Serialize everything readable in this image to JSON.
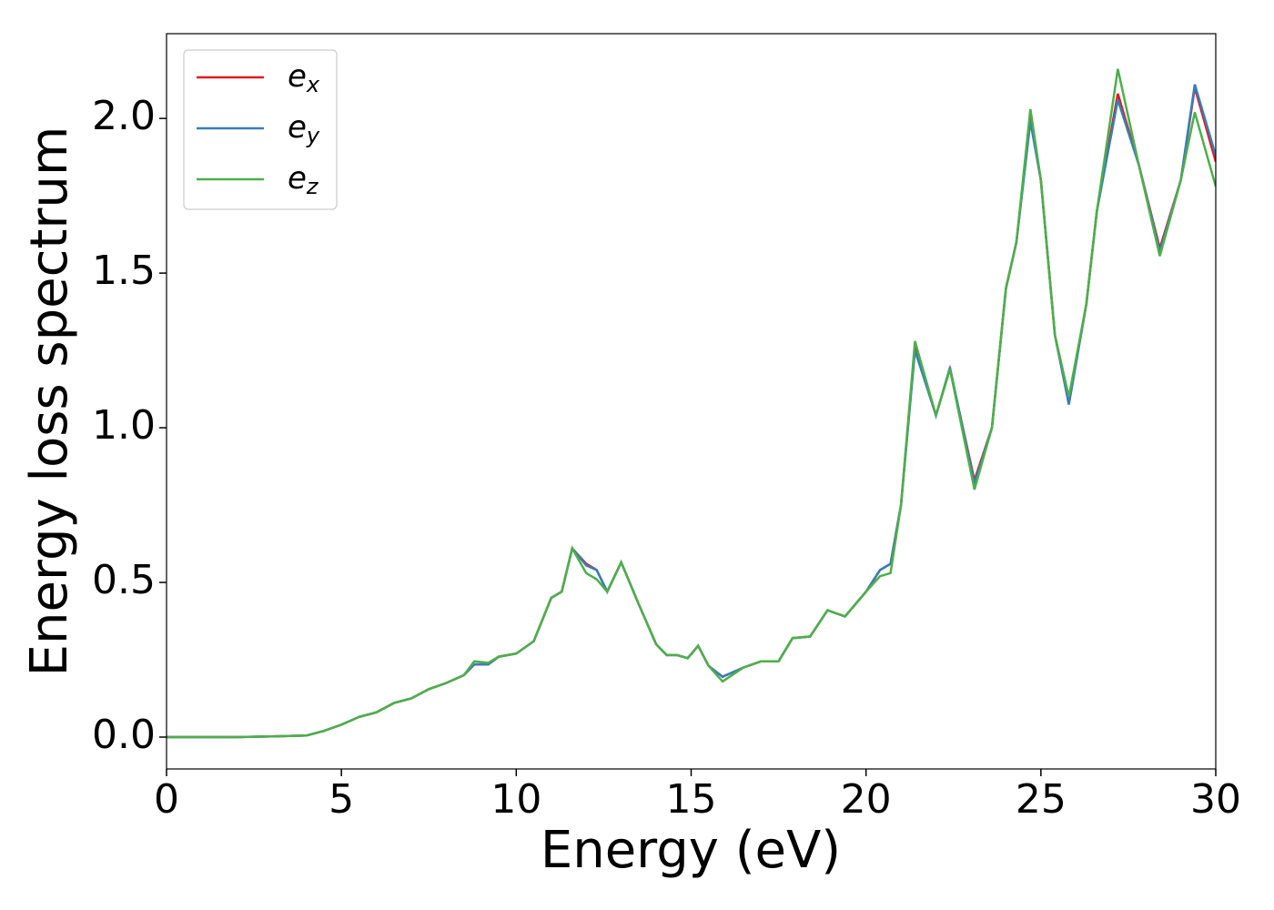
{
  "chart_data": {
    "type": "line",
    "xlabel": "Energy (eV)",
    "ylabel": "Energy loss spectrum",
    "x": [
      0,
      1,
      2,
      3,
      4,
      4.5,
      5,
      5.5,
      6,
      6.5,
      7,
      7.5,
      8,
      8.5,
      8.8,
      9.2,
      9.5,
      10,
      10.5,
      11,
      11.3,
      11.6,
      12,
      12.3,
      12.6,
      13,
      13.5,
      14,
      14.3,
      14.6,
      14.9,
      15.2,
      15.5,
      15.9,
      16.5,
      17,
      17.5,
      17.9,
      18.4,
      18.9,
      19.4,
      20,
      20.4,
      20.7,
      21,
      21.4,
      22,
      22.4,
      23.1,
      23.6,
      24,
      24.3,
      24.7,
      25,
      25.4,
      25.8,
      26.3,
      26.6,
      27.2,
      27.8,
      28.4,
      29,
      29.4,
      30
    ],
    "series": [
      {
        "name": "ex",
        "color": "#e41a1c",
        "values": [
          0,
          0,
          0,
          0.002,
          0.005,
          0.02,
          0.04,
          0.065,
          0.08,
          0.11,
          0.125,
          0.155,
          0.175,
          0.2,
          0.235,
          0.235,
          0.26,
          0.27,
          0.31,
          0.45,
          0.47,
          0.61,
          0.56,
          0.54,
          0.47,
          0.565,
          0.43,
          0.3,
          0.265,
          0.265,
          0.255,
          0.295,
          0.23,
          0.195,
          0.225,
          0.245,
          0.245,
          0.32,
          0.325,
          0.41,
          0.39,
          0.47,
          0.54,
          0.56,
          0.75,
          1.26,
          1.04,
          1.19,
          0.83,
          1.0,
          1.45,
          1.6,
          2.0,
          1.8,
          1.3,
          1.085,
          1.4,
          1.7,
          2.08,
          1.85,
          1.58,
          1.8,
          2.1,
          1.86
        ]
      },
      {
        "name": "ey",
        "color": "#377eb8",
        "values": [
          0,
          0,
          0,
          0.002,
          0.005,
          0.02,
          0.04,
          0.065,
          0.08,
          0.11,
          0.125,
          0.155,
          0.175,
          0.2,
          0.235,
          0.235,
          0.26,
          0.27,
          0.31,
          0.45,
          0.47,
          0.61,
          0.555,
          0.54,
          0.47,
          0.565,
          0.43,
          0.3,
          0.265,
          0.265,
          0.255,
          0.295,
          0.23,
          0.195,
          0.225,
          0.245,
          0.245,
          0.32,
          0.325,
          0.41,
          0.39,
          0.47,
          0.54,
          0.56,
          0.75,
          1.25,
          1.04,
          1.195,
          0.82,
          1.0,
          1.45,
          1.6,
          1.99,
          1.8,
          1.3,
          1.075,
          1.4,
          1.7,
          2.06,
          1.85,
          1.57,
          1.8,
          2.11,
          1.88
        ]
      },
      {
        "name": "ez",
        "color": "#4daf4a",
        "values": [
          0,
          0,
          0,
          0.002,
          0.005,
          0.02,
          0.04,
          0.065,
          0.08,
          0.11,
          0.125,
          0.155,
          0.175,
          0.2,
          0.245,
          0.24,
          0.26,
          0.27,
          0.31,
          0.45,
          0.47,
          0.61,
          0.53,
          0.51,
          0.47,
          0.565,
          0.43,
          0.3,
          0.265,
          0.265,
          0.255,
          0.295,
          0.23,
          0.18,
          0.225,
          0.245,
          0.245,
          0.32,
          0.325,
          0.41,
          0.39,
          0.47,
          0.52,
          0.53,
          0.75,
          1.28,
          1.04,
          1.19,
          0.8,
          1.0,
          1.45,
          1.6,
          2.03,
          1.8,
          1.3,
          1.1,
          1.4,
          1.7,
          2.16,
          1.85,
          1.555,
          1.8,
          2.02,
          1.78
        ]
      }
    ],
    "xlim": [
      0,
      30
    ],
    "xticks": [
      0,
      5,
      10,
      15,
      20,
      25,
      30
    ],
    "ylim": [
      -0.103,
      2.274
    ],
    "yticks": [
      {
        "value": 0,
        "label": "0.0"
      },
      0.5,
      {
        "value": 1,
        "label": "1.0"
      },
      1.5,
      {
        "value": 2,
        "label": "2.0"
      }
    ],
    "legend": "upper left"
  }
}
